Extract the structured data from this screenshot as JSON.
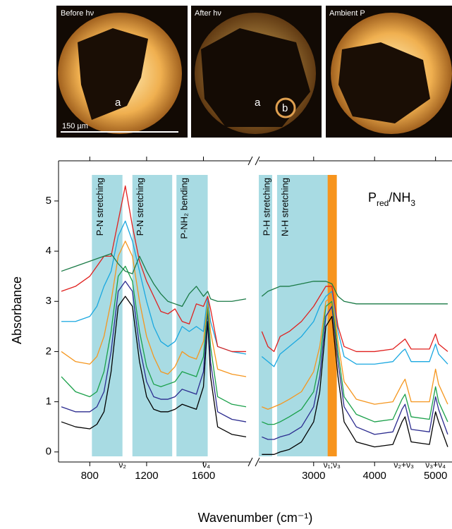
{
  "images": [
    {
      "caption": "Before hν",
      "letters": [
        "a"
      ]
    },
    {
      "caption": "After hν",
      "letters": [
        "a",
        "b"
      ]
    },
    {
      "caption": "Ambient P"
    }
  ],
  "scale_bar": "150 µm",
  "chart_data": [
    {
      "type": "line",
      "ylabel": "Absorbance",
      "xlabel": "Wavenumber (cm⁻¹)",
      "xlim": [
        580,
        1930
      ],
      "xticks": [
        800,
        1200,
        1600
      ],
      "ylim": [
        -0.2,
        5.8
      ],
      "yticks": [
        0,
        1,
        2,
        3,
        4,
        5
      ],
      "x": [
        600,
        700,
        800,
        850,
        900,
        950,
        1000,
        1050,
        1100,
        1150,
        1200,
        1250,
        1300,
        1350,
        1400,
        1450,
        1500,
        1550,
        1600,
        1630,
        1650,
        1700,
        1800,
        1900
      ],
      "bands": [
        {
          "label": "P-N stretching",
          "x": [
            815,
            1030
          ],
          "color": "#a8dbe3"
        },
        {
          "label": "P-N stretching",
          "x": [
            1100,
            1380
          ],
          "color": "#a8dbe3"
        },
        {
          "label": "P-NH₂ bending",
          "x": [
            1410,
            1630
          ],
          "color": "#a8dbe3"
        }
      ],
      "annotations": [
        {
          "text": "ν₂",
          "x": 1030
        },
        {
          "text": "ν₄",
          "x": 1620
        }
      ],
      "series": [
        {
          "color": "#000000",
          "values": [
            0.6,
            0.5,
            0.46,
            0.55,
            0.8,
            1.6,
            2.9,
            3.1,
            2.9,
            1.8,
            1.1,
            0.85,
            0.8,
            0.8,
            0.85,
            0.95,
            0.9,
            0.85,
            1.3,
            2.6,
            1.5,
            0.5,
            0.35,
            0.3
          ]
        },
        {
          "color": "#2b2b8f",
          "values": [
            0.9,
            0.8,
            0.8,
            0.9,
            1.2,
            2.0,
            3.2,
            3.4,
            3.2,
            2.1,
            1.4,
            1.1,
            1.05,
            1.05,
            1.1,
            1.25,
            1.2,
            1.15,
            1.6,
            2.8,
            1.8,
            0.8,
            0.65,
            0.6
          ]
        },
        {
          "color": "#1aa04a",
          "values": [
            1.5,
            1.2,
            1.1,
            1.2,
            1.6,
            2.4,
            3.5,
            3.7,
            3.4,
            2.4,
            1.7,
            1.35,
            1.3,
            1.35,
            1.4,
            1.6,
            1.55,
            1.5,
            1.9,
            2.9,
            2.1,
            1.1,
            0.95,
            0.9
          ]
        },
        {
          "color": "#f5961e",
          "values": [
            2.0,
            1.8,
            1.75,
            1.9,
            2.3,
            3.0,
            3.9,
            4.2,
            3.9,
            3.0,
            2.3,
            1.9,
            1.6,
            1.55,
            1.7,
            2.0,
            1.9,
            1.85,
            2.2,
            3.0,
            2.4,
            1.65,
            1.55,
            1.5
          ]
        },
        {
          "color": "#1aa8e0",
          "values": [
            2.6,
            2.6,
            2.7,
            2.9,
            3.3,
            3.6,
            4.3,
            4.6,
            4.2,
            3.6,
            3.0,
            2.5,
            2.2,
            2.1,
            2.2,
            2.5,
            2.4,
            2.5,
            2.4,
            3.1,
            2.6,
            2.1,
            2.0,
            1.95
          ]
        },
        {
          "color": "#e0201e",
          "values": [
            3.2,
            3.3,
            3.5,
            3.7,
            3.9,
            3.9,
            4.6,
            5.3,
            4.5,
            3.8,
            3.4,
            3.1,
            2.8,
            2.75,
            2.85,
            2.6,
            2.55,
            2.95,
            2.9,
            3.1,
            2.85,
            2.1,
            2.0,
            2.0
          ]
        },
        {
          "color": "#1a7a46",
          "values": [
            3.6,
            3.7,
            3.8,
            3.85,
            3.9,
            3.95,
            3.75,
            3.6,
            3.55,
            3.9,
            3.6,
            3.35,
            3.15,
            3.0,
            2.95,
            2.9,
            3.15,
            3.3,
            3.1,
            3.2,
            3.05,
            3.0,
            3.0,
            3.05
          ]
        }
      ]
    },
    {
      "type": "line",
      "title_parts": [
        {
          "text": "P"
        },
        {
          "text": "red",
          "sub": true
        },
        {
          "text": "/NH"
        },
        {
          "text": "3",
          "sub": true
        }
      ],
      "xlim": [
        2100,
        5270
      ],
      "xticks": [
        3000,
        4000,
        5000
      ],
      "ylim": [
        -0.2,
        5.8
      ],
      "x": [
        2150,
        2250,
        2350,
        2450,
        2600,
        2800,
        3000,
        3100,
        3200,
        3300,
        3400,
        3500,
        3700,
        4000,
        4300,
        4450,
        4500,
        4600,
        4900,
        5000,
        5050,
        5200
      ],
      "bands": [
        {
          "label": "P-H stretching",
          "x": [
            2100,
            2320
          ],
          "color": "#a8dbe3"
        },
        {
          "label": "N-H stretching",
          "x": [
            2400,
            3330
          ],
          "color": "#a8dbe3"
        },
        {
          "x": [
            3230,
            3380
          ],
          "color": "#f7941d"
        }
      ],
      "annotations": [
        {
          "text": "ν₁;ν₃",
          "x": 3300
        },
        {
          "text": "ν₂+ν₃",
          "x": 4480
        },
        {
          "text": "ν₃+ν₄",
          "x": 5000
        }
      ],
      "series": [
        {
          "color": "#000000",
          "values": [
            -0.05,
            -0.05,
            -0.05,
            0.0,
            0.05,
            0.2,
            0.6,
            1.2,
            2.5,
            2.7,
            1.5,
            0.6,
            0.2,
            0.1,
            0.15,
            0.6,
            0.7,
            0.2,
            0.15,
            0.8,
            0.6,
            0.1
          ]
        },
        {
          "color": "#2b2b8f",
          "values": [
            0.3,
            0.25,
            0.25,
            0.3,
            0.35,
            0.5,
            0.9,
            1.5,
            2.7,
            2.9,
            1.8,
            0.9,
            0.5,
            0.35,
            0.4,
            0.85,
            0.95,
            0.45,
            0.4,
            1.1,
            0.85,
            0.35
          ]
        },
        {
          "color": "#1aa04a",
          "values": [
            0.6,
            0.55,
            0.55,
            0.6,
            0.7,
            0.85,
            1.2,
            1.8,
            2.9,
            3.0,
            2.0,
            1.1,
            0.75,
            0.6,
            0.65,
            1.05,
            1.15,
            0.7,
            0.65,
            1.3,
            1.0,
            0.6
          ]
        },
        {
          "color": "#f5961e",
          "values": [
            0.9,
            0.85,
            0.9,
            0.95,
            1.05,
            1.2,
            1.6,
            2.1,
            3.0,
            3.1,
            2.2,
            1.4,
            1.05,
            0.95,
            1.0,
            1.35,
            1.45,
            1.0,
            1.0,
            1.65,
            1.35,
            0.95
          ]
        },
        {
          "color": "#1aa8e0",
          "values": [
            1.9,
            1.8,
            1.7,
            1.95,
            2.1,
            2.3,
            2.6,
            2.9,
            3.1,
            3.2,
            2.4,
            1.9,
            1.75,
            1.75,
            1.8,
            2.0,
            2.05,
            1.8,
            1.8,
            2.15,
            1.95,
            1.75
          ]
        },
        {
          "color": "#e0201e",
          "values": [
            2.4,
            2.1,
            2.0,
            2.3,
            2.4,
            2.6,
            2.9,
            3.1,
            3.3,
            3.3,
            2.5,
            2.1,
            2.0,
            2.0,
            2.05,
            2.2,
            2.25,
            2.05,
            2.05,
            2.35,
            2.15,
            2.0
          ]
        },
        {
          "color": "#1a7a46",
          "values": [
            3.1,
            3.2,
            3.25,
            3.3,
            3.3,
            3.35,
            3.4,
            3.4,
            3.4,
            3.35,
            3.1,
            3.0,
            2.95,
            2.95,
            2.95,
            2.95,
            2.95,
            2.95,
            2.95,
            2.95,
            2.95,
            2.95
          ]
        }
      ]
    }
  ]
}
